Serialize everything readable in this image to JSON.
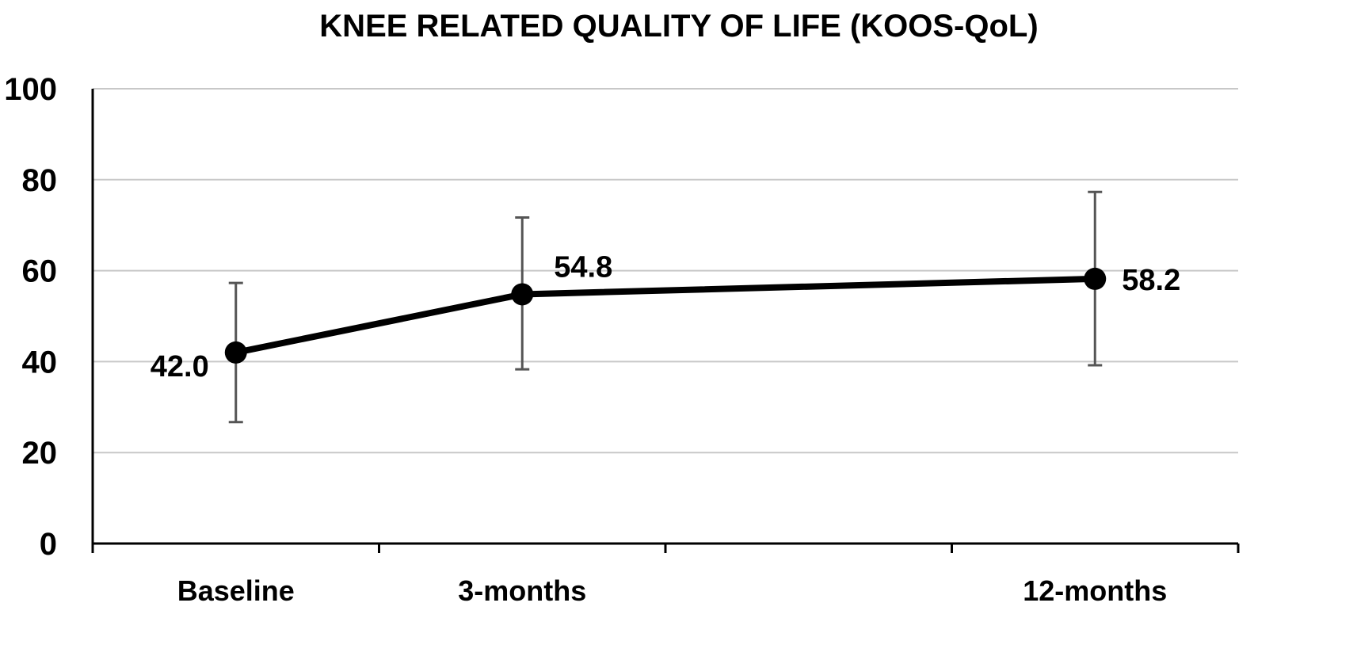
{
  "chart_data": {
    "type": "line",
    "title": "KNEE RELATED QUALITY OF LIFE (KOOS-QoL)",
    "xlabel": "",
    "ylabel": "",
    "categories": [
      "Baseline",
      "3-months",
      "12-months"
    ],
    "category_slots": [
      0.5,
      1.5,
      3.5
    ],
    "slot_count": 4,
    "series": [
      {
        "values": [
          42.0,
          54.8,
          58.2
        ],
        "error_low": [
          26.7,
          38.3,
          39.2
        ],
        "error_high": [
          57.3,
          71.7,
          77.3
        ],
        "data_labels": [
          "42.0",
          "54.8",
          "58.2"
        ]
      }
    ],
    "ylim": [
      0,
      100
    ],
    "yticks": [
      "0",
      "20",
      "40",
      "60",
      "80",
      "100"
    ],
    "grid": true,
    "legend": "none",
    "colors": {
      "line": "#000000",
      "marker": "#000000",
      "error_bar": "#555555",
      "grid": "#c8c8c8",
      "axis": "#000000"
    }
  }
}
